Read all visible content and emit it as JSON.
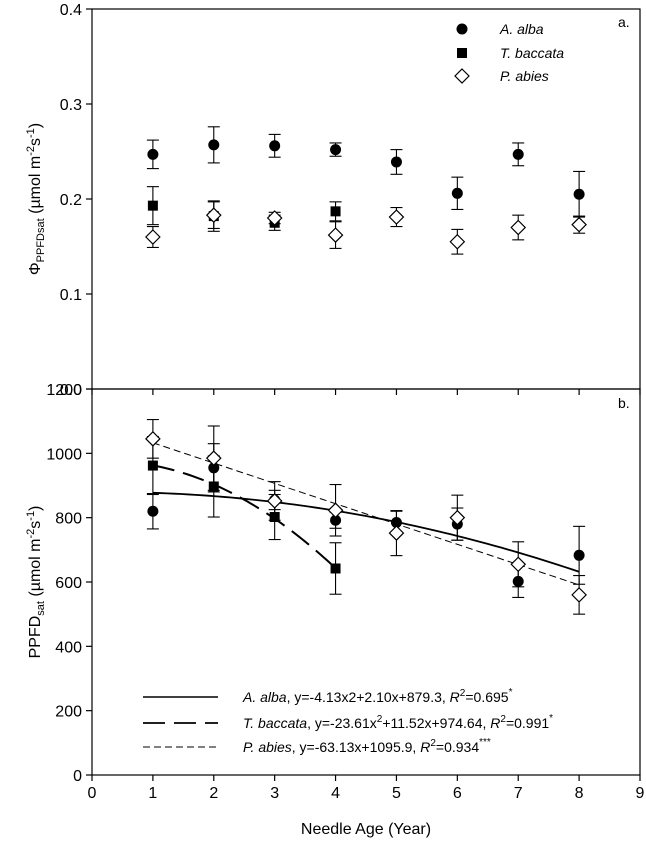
{
  "figure": {
    "xlabel": "Needle Age (Year)"
  },
  "chart_data": [
    {
      "type": "scatter",
      "panel_label": "a.",
      "ylabel": {
        "prefix": "Φ",
        "sub": "PPFDsat",
        "unit_main": " (µmol m",
        "unit_exp1": "-2",
        "unit_mid": "s",
        "unit_exp2": "-1",
        "unit_end": ")"
      },
      "xlim": [
        0,
        9
      ],
      "ylim": [
        0.0,
        0.4
      ],
      "yticks": [
        "0.0",
        "0.1",
        "0.2",
        "0.3",
        "0.4"
      ],
      "yticks_values": [
        0.0,
        0.1,
        0.2,
        0.3,
        0.4
      ],
      "grid": false,
      "legend_position": "top-right",
      "series": [
        {
          "name": "A. alba",
          "marker": "circle",
          "x": [
            1,
            2,
            3,
            4,
            5,
            6,
            7,
            8
          ],
          "y": [
            0.247,
            0.257,
            0.256,
            0.252,
            0.239,
            0.206,
            0.247,
            0.205
          ],
          "err": [
            0.015,
            0.019,
            0.012,
            0.007,
            0.013,
            0.017,
            0.012,
            0.024
          ]
        },
        {
          "name": "T. baccata",
          "marker": "square",
          "x": [
            1,
            2,
            3,
            4
          ],
          "y": [
            0.193,
            0.182,
            0.175,
            0.187
          ],
          "err": [
            0.02,
            0.016,
            0.008,
            0.01
          ]
        },
        {
          "name": "P. abies",
          "marker": "diamond",
          "x": [
            1,
            2,
            3,
            4,
            5,
            6,
            7,
            8
          ],
          "y": [
            0.16,
            0.183,
            0.18,
            0.162,
            0.181,
            0.155,
            0.17,
            0.173
          ],
          "err": [
            0.011,
            0.014,
            0.006,
            0.014,
            0.01,
            0.013,
            0.013,
            0.009
          ]
        }
      ]
    },
    {
      "type": "scatter",
      "panel_label": "b.",
      "ylabel": {
        "main": "PPFD",
        "sub": "sat",
        "unit_main": " (µmol m",
        "unit_exp1": "-2",
        "unit_mid": "s",
        "unit_exp2": "-1",
        "unit_end": ")"
      },
      "xlim": [
        0,
        9
      ],
      "ylim": [
        0,
        1200
      ],
      "xticks": [
        "0",
        "1",
        "2",
        "3",
        "4",
        "5",
        "6",
        "7",
        "8",
        "9"
      ],
      "xticks_values": [
        0,
        1,
        2,
        3,
        4,
        5,
        6,
        7,
        8,
        9
      ],
      "yticks": [
        "0",
        "200",
        "400",
        "600",
        "800",
        "1000",
        "1200"
      ],
      "yticks_values": [
        0,
        200,
        400,
        600,
        800,
        1000,
        1200
      ],
      "grid": false,
      "legend_position": "bottom-left",
      "series": [
        {
          "name": "A. alba",
          "marker": "circle",
          "x": [
            1,
            2,
            3,
            4,
            5,
            6,
            7,
            8
          ],
          "y": [
            820,
            955,
            855,
            792,
            785,
            780,
            602,
            683
          ],
          "err": [
            55,
            75,
            30,
            25,
            35,
            50,
            50,
            90
          ],
          "fit": {
            "style": "solid",
            "coefficients": [
              -4.13,
              2.1,
              879.3
            ],
            "x_range": [
              1,
              8
            ],
            "label": {
              "species": "A. alba",
              "equation": ", y=-4.13x2+2.10x+879.3, ",
              "r": "R",
              "r_exp": "2",
              "r_value": "=0.695",
              "sig": "*"
            }
          }
        },
        {
          "name": "T. baccata",
          "marker": "square",
          "x": [
            1,
            2,
            3,
            4
          ],
          "y": [
            962,
            897,
            802,
            642
          ],
          "err": [
            90,
            95,
            70,
            80
          ],
          "fit": {
            "style": "long-dash",
            "coefficients": [
              -23.61,
              11.52,
              974.64
            ],
            "x_range": [
              1,
              4
            ],
            "label": {
              "species": "T. baccata",
              "equation_a": ", y=-23.61x",
              "equation_exp": "2",
              "equation_b": "+11.52x+974.64, ",
              "r": "R",
              "r_exp": "2",
              "r_value": "=0.991",
              "sig": "*"
            }
          }
        },
        {
          "name": "P. abies",
          "marker": "diamond",
          "x": [
            1,
            2,
            3,
            4,
            5,
            6,
            7,
            8
          ],
          "y": [
            1045,
            985,
            852,
            823,
            752,
            800,
            655,
            560
          ],
          "err": [
            60,
            100,
            60,
            80,
            70,
            70,
            70,
            60
          ],
          "fit": {
            "style": "short-dash",
            "coefficients": [
              0,
              -63.13,
              1095.9
            ],
            "x_range": [
              1,
              8
            ],
            "label": {
              "species": "P. abies",
              "equation": ", y=-63.13x+1095.9, ",
              "r": "R",
              "r_exp": "2",
              "r_value": "=0.934",
              "sig": "***"
            }
          }
        }
      ]
    }
  ]
}
